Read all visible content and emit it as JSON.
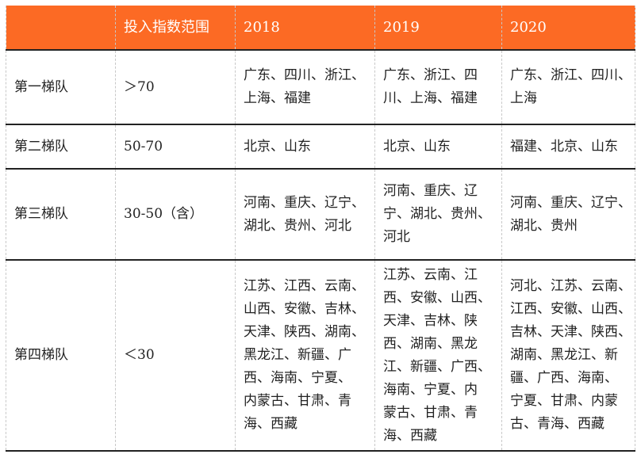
{
  "header": [
    "",
    "投入指数范围",
    "2018",
    "2019",
    "2020"
  ],
  "colors": {
    "header_bg": "#fc6a24",
    "header_text": "#ffffff"
  },
  "rows": [
    {
      "tier": "第一梯队",
      "range": "＞70",
      "y2018": [
        "广东、四川、浙江、",
        "上海、福建"
      ],
      "y2019": [
        "广东、浙江、四",
        "川、上海、福建"
      ],
      "y2020": [
        "广东、浙江、四川、",
        "上海"
      ]
    },
    {
      "tier": "第二梯队",
      "range": "50-70",
      "y2018": [
        "北京、山东"
      ],
      "y2019": [
        "北京、山东"
      ],
      "y2020": [
        "福建、北京、山东"
      ]
    },
    {
      "tier": "第三梯队",
      "range": "30-50（含）",
      "y2018": [
        "河南、重庆、辽宁、",
        "湖北、贵州、河北"
      ],
      "y2019": [
        "河南、重庆、辽",
        "宁、湖北、贵州、",
        "河北"
      ],
      "y2020": [
        "河南、重庆、辽宁、",
        "湖北、贵州"
      ]
    },
    {
      "tier": "第四梯队",
      "range": "＜30",
      "y2018": [
        "江苏、江西、云南、",
        "山西、安徽、吉林、",
        "天津、陕西、湖南、",
        "黑龙江、新疆、广",
        "西、海南、宁夏、",
        "内蒙古、甘肃、青",
        "海、西藏"
      ],
      "y2019": [
        "江苏、云南、江",
        "西、安徽、山西、",
        "天津、吉林、陕",
        "西、湖南、黑龙",
        "江、新疆、广西、",
        "海南、宁夏、内",
        "蒙古、甘肃、青",
        "海、西藏"
      ],
      "y2020": [
        "河北、江苏、云南、",
        "江西、安徽、山西、",
        "吉林、天津、陕西、",
        "湖南、黑龙江、新",
        "疆、广西、海南、",
        "宁夏、甘肃、内蒙",
        "古、青海、西藏"
      ]
    }
  ]
}
